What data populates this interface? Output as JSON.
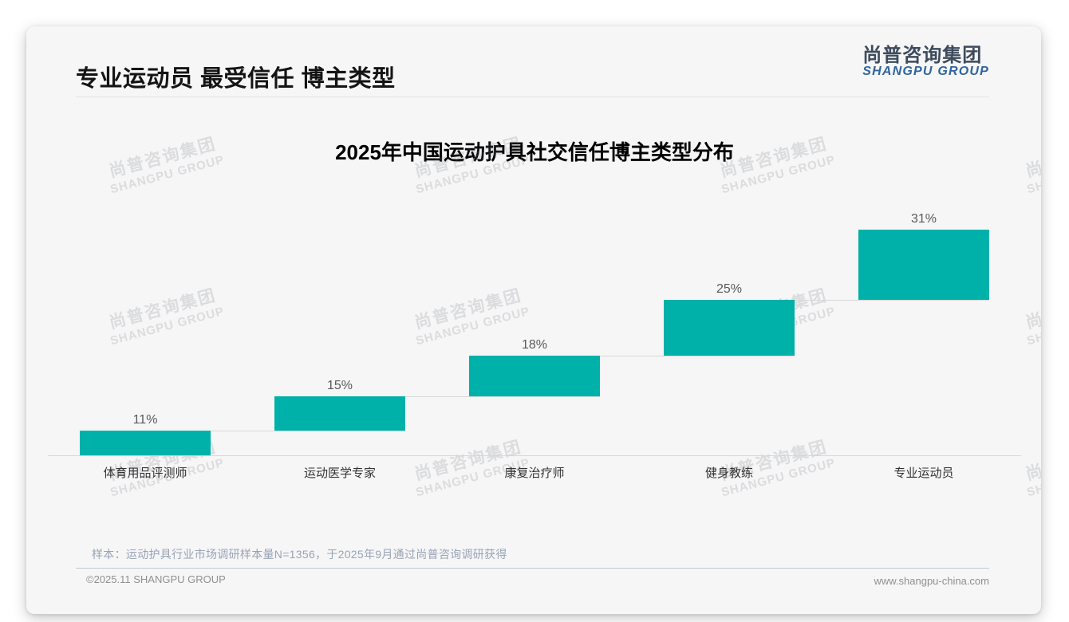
{
  "page": {
    "title": "专业运动员 最受信任 博主类型",
    "source_note": "样本：运动护具行业市场调研样本量N=1356，于2025年9月通过尚普咨询调研获得",
    "footer_left": "©2025.11 SHANGPU GROUP",
    "footer_right": "www.shangpu-china.com"
  },
  "logo": {
    "cn": "尚普咨询集团",
    "en": "SHANGPU GROUP"
  },
  "watermark": {
    "cn": "尚普咨询集团",
    "en": "SHANGPU GROUP"
  },
  "colors": {
    "bar": "#00B1A9",
    "connector": "#D8D8D8",
    "logo_dark": "#3D4B5C",
    "logo_blue": "#2F649E"
  },
  "chart_data": {
    "type": "bar",
    "subtype": "waterfall",
    "title": "2025年中国运动护具社交信任博主类型分布",
    "categories": [
      "体育用品评测师",
      "运动医学专家",
      "康复治疗师",
      "健身教练",
      "专业运动员"
    ],
    "values": [
      11,
      15,
      18,
      25,
      31
    ],
    "labels": [
      "11%",
      "15%",
      "18%",
      "25%",
      "31%"
    ],
    "xlabel": "",
    "ylabel": "",
    "ylim": [
      0,
      100
    ],
    "grid": false,
    "legend": false,
    "note": "cascading bars; each bar starts at the cumulative sum of previous bars; light gray connector lines join consecutive bars; total = 100%"
  }
}
